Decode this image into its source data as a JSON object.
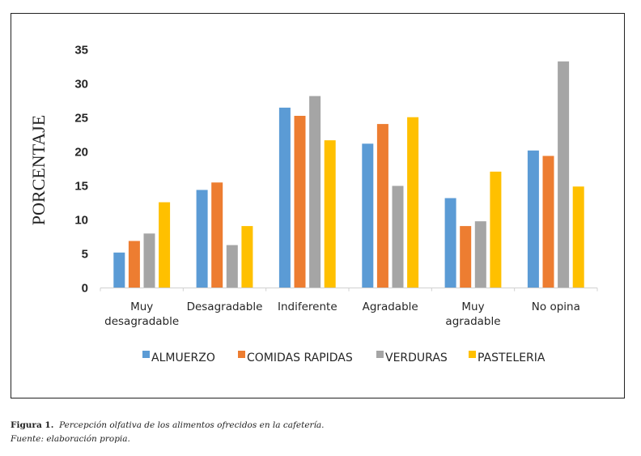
{
  "chart_data": {
    "type": "bar",
    "title": "",
    "xlabel": "",
    "ylabel": "PORCENTAJE",
    "ylim": [
      0,
      35
    ],
    "yticks": [
      0,
      5,
      10,
      15,
      20,
      25,
      30,
      35
    ],
    "grid": false,
    "legend_position": "bottom",
    "categories": [
      [
        "Muy",
        "desagradable"
      ],
      [
        "Desagradable"
      ],
      [
        "Indiferente"
      ],
      [
        "Agradable"
      ],
      [
        "Muy",
        "agradable"
      ],
      [
        "No opina"
      ]
    ],
    "series": [
      {
        "name": "ALMUERZO",
        "color": "#5b9bd5",
        "values": [
          5.2,
          14.4,
          26.5,
          21.2,
          13.2,
          20.2
        ]
      },
      {
        "name": "COMIDAS RAPIDAS",
        "color": "#ed7d31",
        "values": [
          6.9,
          15.5,
          25.3,
          24.1,
          9.1,
          19.4
        ]
      },
      {
        "name": "VERDURAS",
        "color": "#a5a5a5",
        "values": [
          8.0,
          6.3,
          28.2,
          15.0,
          9.8,
          33.3
        ]
      },
      {
        "name": "PASTELERIA",
        "color": "#ffc000",
        "values": [
          12.6,
          9.1,
          21.7,
          25.1,
          17.1,
          14.9
        ]
      }
    ]
  },
  "caption": {
    "figure_label": "Figura 1.",
    "figure_text": "Percepción olfativa de los alimentos ofrecidos en la cafetería.",
    "source": "Fuente: elaboración propia."
  }
}
